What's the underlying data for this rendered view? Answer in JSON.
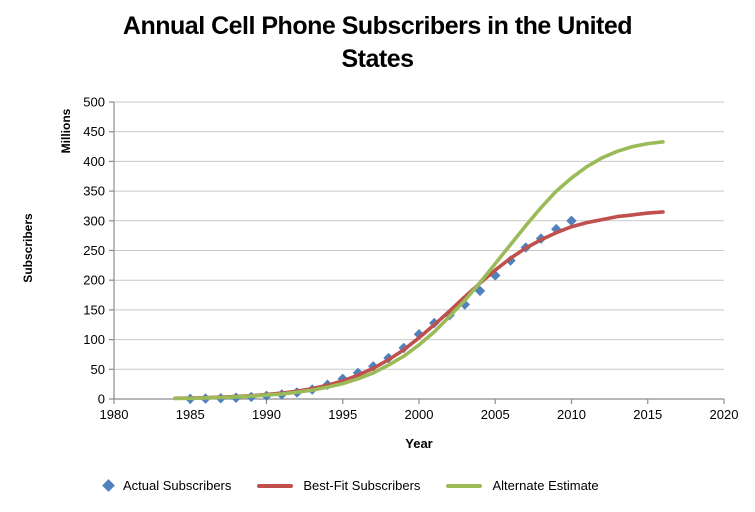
{
  "title": {
    "line1": "Annual Cell Phone Subscribers in the United",
    "line2": "States"
  },
  "y_axis": {
    "title_outer": "Subscribers",
    "title_inner": "Millions",
    "ticks": [
      0,
      50,
      100,
      150,
      200,
      250,
      300,
      350,
      400,
      450,
      500
    ],
    "min": 0,
    "max": 500
  },
  "x_axis": {
    "title": "Year",
    "ticks": [
      1980,
      1985,
      1990,
      1995,
      2000,
      2005,
      2010,
      2015,
      2020
    ],
    "min": 1980,
    "max": 2020
  },
  "legend": {
    "items": [
      {
        "label": "Actual Subscribers",
        "marker": "diamond",
        "color": "#4F81BD"
      },
      {
        "label": "Best-Fit Subscribers",
        "marker": "line",
        "color": "#C0504D"
      },
      {
        "label": "Alternate Estimate",
        "marker": "line",
        "color": "#9BBB59"
      }
    ]
  },
  "colors": {
    "actual": "#4F81BD",
    "best_fit": "#C0504D",
    "alternate": "#9BBB59",
    "gridline": "#C9C9C9",
    "axis": "#8C8C8C",
    "text": "#000000",
    "background": "#FFFFFF"
  },
  "chart_data": {
    "type": "scatter",
    "title": "Annual Cell Phone Subscribers in the United States",
    "xlabel": "Year",
    "ylabel": "Subscribers (Millions)",
    "xlim": [
      1980,
      2020
    ],
    "ylim": [
      0,
      500
    ],
    "grid": "horizontal",
    "legend_position": "bottom",
    "series": [
      {
        "name": "Actual Subscribers",
        "type": "scatter",
        "marker": "diamond",
        "color": "#4F81BD",
        "x": [
          1985,
          1986,
          1987,
          1988,
          1989,
          1990,
          1991,
          1992,
          1993,
          1994,
          1995,
          1996,
          1997,
          1998,
          1999,
          2000,
          2001,
          2002,
          2003,
          2004,
          2005,
          2006,
          2007,
          2008,
          2009,
          2010
        ],
        "y": [
          0.3,
          0.7,
          1.2,
          2.1,
          3.5,
          5.3,
          7.6,
          11,
          16,
          24,
          34,
          44,
          55,
          69,
          86,
          109,
          128,
          141,
          159,
          182,
          208,
          233,
          255,
          270,
          286,
          300
        ]
      },
      {
        "name": "Best-Fit Subscribers",
        "type": "line",
        "color": "#C0504D",
        "x": [
          1984,
          1985,
          1986,
          1987,
          1988,
          1989,
          1990,
          1991,
          1992,
          1993,
          1994,
          1995,
          1996,
          1997,
          1998,
          1999,
          2000,
          2001,
          2002,
          2003,
          2004,
          2005,
          2006,
          2007,
          2008,
          2009,
          2010,
          2011,
          2012,
          2013,
          2014,
          2015,
          2016
        ],
        "y": [
          1.2,
          1.7,
          2.2,
          3,
          4.1,
          5.5,
          7.4,
          9.9,
          13.2,
          17.5,
          23.2,
          30.5,
          40,
          51.6,
          66,
          83,
          103,
          125,
          148,
          172,
          195,
          217,
          237,
          254,
          268,
          280,
          290,
          297,
          302,
          307,
          310,
          313,
          315
        ]
      },
      {
        "name": "Alternate Estimate",
        "type": "line",
        "color": "#9BBB59",
        "x": [
          1984,
          1985,
          1986,
          1987,
          1988,
          1989,
          1990,
          1991,
          1992,
          1993,
          1994,
          1995,
          1996,
          1997,
          1998,
          1999,
          2000,
          2001,
          2002,
          2003,
          2004,
          2005,
          2006,
          2007,
          2008,
          2009,
          2010,
          2011,
          2012,
          2013,
          2014,
          2015,
          2016
        ],
        "y": [
          0.8,
          1.2,
          1.8,
          2.6,
          3.6,
          4.9,
          6.5,
          8.5,
          11.5,
          15,
          20,
          26,
          34,
          44,
          57,
          72,
          91,
          113,
          139,
          166,
          196,
          228,
          260,
          292,
          322,
          350,
          372,
          391,
          406,
          417,
          425,
          430,
          433
        ]
      }
    ]
  }
}
